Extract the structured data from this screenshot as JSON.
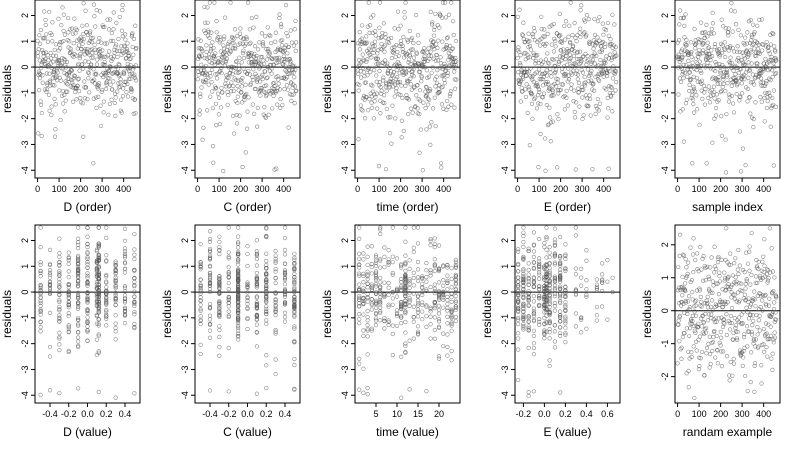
{
  "chart_data": [
    {
      "type": "scatter",
      "xlabel": "D (order)",
      "ylabel": "residuals",
      "xlim": [
        -12,
        476
      ],
      "ylim": [
        -4.3,
        2.6
      ],
      "xticks": [
        0,
        100,
        200,
        300,
        400
      ],
      "xtick_labels": [
        "0",
        "100",
        "200",
        "300",
        "400"
      ],
      "yticks": [
        -4,
        -3,
        -2,
        -1,
        0,
        1,
        2
      ],
      "ytick_labels": [
        "-4",
        "-3",
        "-2",
        "-1",
        "0",
        "1",
        "2"
      ],
      "hline": 0,
      "x_kind": "index"
    },
    {
      "type": "scatter",
      "xlabel": "C (order)",
      "ylabel": "residuals",
      "xlim": [
        -12,
        476
      ],
      "ylim": [
        -4.3,
        2.6
      ],
      "xticks": [
        0,
        100,
        200,
        300,
        400
      ],
      "xtick_labels": [
        "0",
        "100",
        "200",
        "300",
        "400"
      ],
      "yticks": [
        -4,
        -3,
        -2,
        -1,
        0,
        1,
        2
      ],
      "ytick_labels": [
        "-4",
        "-3",
        "-2",
        "-1",
        "0",
        "1",
        "2"
      ],
      "hline": 0,
      "x_kind": "index"
    },
    {
      "type": "scatter",
      "xlabel": "time (order)",
      "ylabel": "residuals",
      "xlim": [
        -12,
        476
      ],
      "ylim": [
        -4.3,
        2.6
      ],
      "xticks": [
        0,
        100,
        200,
        300,
        400
      ],
      "xtick_labels": [
        "0",
        "100",
        "200",
        "300",
        "400"
      ],
      "yticks": [
        -4,
        -3,
        -2,
        -1,
        0,
        1,
        2
      ],
      "ytick_labels": [
        "-4",
        "-3",
        "-2",
        "-1",
        "0",
        "1",
        "2"
      ],
      "hline": 0,
      "x_kind": "index"
    },
    {
      "type": "scatter",
      "xlabel": "E (order)",
      "ylabel": "residuals",
      "xlim": [
        -12,
        476
      ],
      "ylim": [
        -4.3,
        2.6
      ],
      "xticks": [
        0,
        100,
        200,
        300,
        400
      ],
      "xtick_labels": [
        "0",
        "100",
        "200",
        "300",
        "400"
      ],
      "yticks": [
        -4,
        -3,
        -2,
        -1,
        0,
        1,
        2
      ],
      "ytick_labels": [
        "-4",
        "-3",
        "-2",
        "-1",
        "0",
        "1",
        "2"
      ],
      "hline": 0,
      "x_kind": "index"
    },
    {
      "type": "scatter",
      "xlabel": "sample index",
      "ylabel": "residuals",
      "xlim": [
        -12,
        476
      ],
      "ylim": [
        -4.3,
        2.6
      ],
      "xticks": [
        0,
        100,
        200,
        300,
        400
      ],
      "xtick_labels": [
        "0",
        "100",
        "200",
        "300",
        "400"
      ],
      "yticks": [
        -4,
        -3,
        -2,
        -1,
        0,
        1,
        2
      ],
      "ytick_labels": [
        "-4",
        "-3",
        "-2",
        "-1",
        "0",
        "1",
        "2"
      ],
      "hline": 0,
      "x_kind": "index"
    },
    {
      "type": "scatter",
      "xlabel": "D (value)",
      "ylabel": "residuals",
      "xlim": [
        -0.56,
        0.56
      ],
      "ylim": [
        -4.3,
        2.6
      ],
      "xticks": [
        -0.4,
        -0.2,
        0.0,
        0.2,
        0.4
      ],
      "xtick_labels": [
        "-0.4",
        "-0.2",
        "0.0",
        "0.2",
        "0.4"
      ],
      "yticks": [
        -4,
        -3,
        -2,
        -1,
        0,
        1,
        2
      ],
      "ytick_labels": [
        "-4",
        "-3",
        "-2",
        "-1",
        "0",
        "1",
        "2"
      ],
      "hline": 0,
      "x_kind": "levels",
      "x_levels": [
        -0.5,
        -0.4,
        -0.3,
        -0.2,
        -0.1,
        0.0,
        0.1,
        0.12,
        0.2,
        0.3,
        0.4,
        0.5
      ],
      "x_weights": [
        1,
        1,
        1.5,
        1,
        1.5,
        1.5,
        1.5,
        3,
        1,
        1.5,
        1,
        1
      ]
    },
    {
      "type": "scatter",
      "xlabel": "C (value)",
      "ylabel": "residuals",
      "xlim": [
        -0.56,
        0.56
      ],
      "ylim": [
        -4.3,
        2.6
      ],
      "xticks": [
        -0.4,
        -0.2,
        0.0,
        0.2,
        0.4
      ],
      "xtick_labels": [
        "-0.4",
        "-0.2",
        "0.0",
        "0.2",
        "0.4"
      ],
      "yticks": [
        -4,
        -3,
        -2,
        -1,
        0,
        1,
        2
      ],
      "ytick_labels": [
        "-4",
        "-3",
        "-2",
        "-1",
        "0",
        "1",
        "2"
      ],
      "hline": 0,
      "x_kind": "levels",
      "x_levels": [
        -0.5,
        -0.4,
        -0.3,
        -0.2,
        -0.1,
        0.0,
        0.1,
        0.2,
        0.3,
        0.4,
        0.5
      ],
      "x_weights": [
        1,
        1.5,
        1.5,
        1,
        3,
        1,
        1.5,
        2,
        1,
        1.5,
        2
      ]
    },
    {
      "type": "scatter",
      "xlabel": "time (value)",
      "ylabel": "residuals",
      "xlim": [
        0,
        25
      ],
      "ylim": [
        -4.3,
        2.6
      ],
      "xticks": [
        5,
        10,
        15,
        20
      ],
      "xtick_labels": [
        "5",
        "10",
        "15",
        "20"
      ],
      "yticks": [
        -4,
        -3,
        -2,
        -1,
        0,
        1,
        2
      ],
      "ytick_labels": [
        "-4",
        "-3",
        "-2",
        "-1",
        "0",
        "1",
        "2"
      ],
      "hline": 0,
      "x_kind": "levels",
      "x_levels": [
        1,
        2,
        3,
        4,
        5,
        6,
        7,
        8,
        9,
        10,
        11,
        12,
        13,
        14,
        15,
        16,
        17,
        18,
        19,
        20,
        21,
        22,
        23,
        24
      ],
      "x_weights": [
        1,
        1,
        1,
        1,
        1.5,
        1.5,
        1,
        1,
        1,
        1,
        1.5,
        3,
        1,
        1,
        1,
        1,
        1,
        1,
        1,
        1,
        1,
        1,
        1,
        1.5
      ]
    },
    {
      "type": "scatter",
      "xlabel": "E (value)",
      "ylabel": "residuals",
      "xlim": [
        -0.28,
        0.72
      ],
      "ylim": [
        -4.3,
        2.6
      ],
      "xticks": [
        -0.2,
        0.0,
        0.2,
        0.4,
        0.6
      ],
      "xtick_labels": [
        "-0.2",
        "0.0",
        "0.2",
        "0.4",
        "0.6"
      ],
      "yticks": [
        -4,
        -3,
        -2,
        -1,
        0,
        1,
        2
      ],
      "ytick_labels": [
        "-4",
        "-3",
        "-2",
        "-1",
        "0",
        "1",
        "2"
      ],
      "hline": 0,
      "x_kind": "levels",
      "x_levels": [
        -0.25,
        -0.2,
        -0.15,
        -0.1,
        -0.05,
        0.0,
        0.02,
        0.05,
        0.1,
        0.15,
        0.2,
        0.3,
        0.35,
        0.4,
        0.5,
        0.55,
        0.6,
        0.65
      ],
      "x_weights": [
        2.5,
        2.5,
        2,
        2,
        1.5,
        3,
        2.5,
        2,
        2,
        2.5,
        1.5,
        0.4,
        0.3,
        0.4,
        0.3,
        0.2,
        0.2,
        0.2
      ]
    },
    {
      "type": "scatter",
      "xlabel": "randam example",
      "ylabel": "residuals",
      "xlim": [
        -12,
        476
      ],
      "ylim": [
        -2.8,
        2.6
      ],
      "xticks": [
        0,
        100,
        200,
        300,
        400
      ],
      "xtick_labels": [
        "0",
        "100",
        "200",
        "300",
        "400"
      ],
      "yticks": [
        -2,
        -1,
        0,
        1,
        2
      ],
      "ytick_labels": [
        "-2",
        "-1",
        "0",
        "1",
        "2"
      ],
      "hline": 0,
      "x_kind": "index"
    }
  ]
}
